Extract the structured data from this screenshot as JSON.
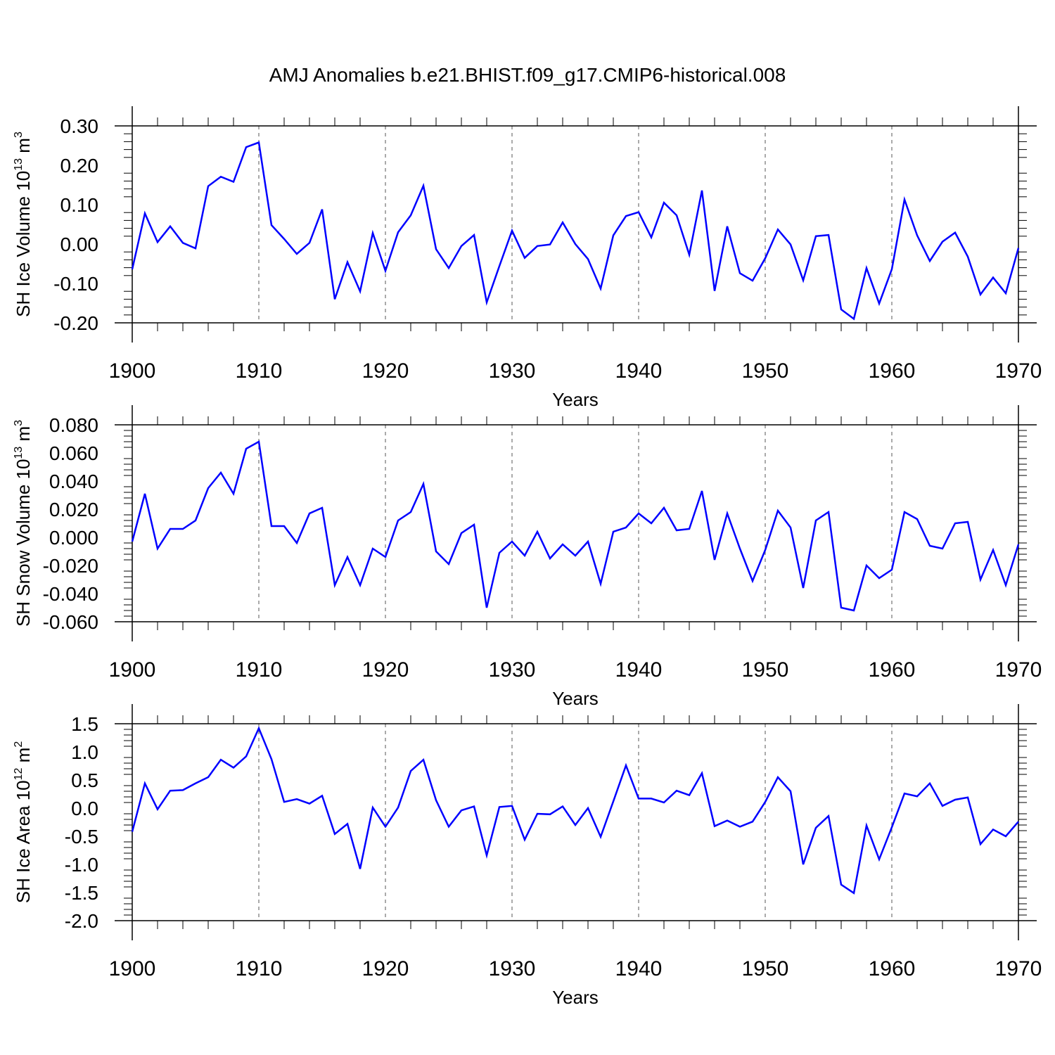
{
  "title": "AMJ Anomalies b.e21.BHIST.f09_g17.CMIP6-historical.008",
  "colors": {
    "line": "#0000ff",
    "axis": "#000000",
    "grid": "#555555"
  },
  "chart_data": [
    {
      "type": "line",
      "title": "AMJ Anomalies b.e21.BHIST.f09_g17.CMIP6-historical.008",
      "ylabel_main": "SH Ice Volume 10",
      "ylabel_exp": "13",
      "ylabel_unit": " m",
      "ylabel_unit_exp": "3",
      "xlabel": "Years",
      "xlim": [
        1900,
        1970
      ],
      "ylim": [
        -0.2,
        0.3
      ],
      "yticks": [
        -0.2,
        -0.1,
        0.0,
        0.1,
        0.2,
        0.3
      ],
      "ytick_labels": [
        "-0.20",
        "-0.10",
        "0.00",
        "0.10",
        "0.20",
        "0.30"
      ],
      "xticks": [
        1900,
        1910,
        1920,
        1930,
        1940,
        1950,
        1960,
        1970
      ],
      "xtick_labels": [
        "1900",
        "1910",
        "1920",
        "1930",
        "1940",
        "1950",
        "1960",
        "1970"
      ],
      "x_start": 1900,
      "values": [
        -0.064,
        0.078,
        0.005,
        0.045,
        0.003,
        -0.011,
        0.147,
        0.171,
        0.158,
        0.246,
        0.258,
        0.048,
        0.013,
        -0.025,
        0.003,
        0.088,
        -0.14,
        -0.046,
        -0.12,
        0.028,
        -0.068,
        0.03,
        0.073,
        0.148,
        -0.013,
        -0.061,
        -0.005,
        0.023,
        -0.148,
        -0.056,
        0.034,
        -0.035,
        -0.005,
        -0.001,
        0.055,
        0.0,
        -0.038,
        -0.113,
        0.022,
        0.071,
        0.081,
        0.017,
        0.105,
        0.073,
        -0.027,
        0.136,
        -0.119,
        0.045,
        -0.074,
        -0.093,
        -0.036,
        0.037,
        -0.001,
        -0.092,
        0.02,
        0.023,
        -0.166,
        -0.19,
        -0.061,
        -0.151,
        -0.064,
        0.113,
        0.022,
        -0.043,
        0.006,
        0.029,
        -0.032,
        -0.128,
        -0.085,
        -0.125,
        -0.01
      ]
    },
    {
      "type": "line",
      "ylabel_main": "SH Snow Volume 10",
      "ylabel_exp": "13",
      "ylabel_unit": " m",
      "ylabel_unit_exp": "3",
      "xlabel": "Years",
      "xlim": [
        1900,
        1970
      ],
      "ylim": [
        -0.06,
        0.08
      ],
      "yticks": [
        -0.06,
        -0.04,
        -0.02,
        0.0,
        0.02,
        0.04,
        0.06,
        0.08
      ],
      "ytick_labels": [
        "-0.060",
        "-0.040",
        "-0.020",
        "0.000",
        "0.020",
        "0.040",
        "0.060",
        "0.080"
      ],
      "xticks": [
        1900,
        1910,
        1920,
        1930,
        1940,
        1950,
        1960,
        1970
      ],
      "xtick_labels": [
        "1900",
        "1910",
        "1920",
        "1930",
        "1940",
        "1950",
        "1960",
        "1970"
      ],
      "x_start": 1900,
      "values": [
        -0.003,
        0.031,
        -0.008,
        0.006,
        0.006,
        0.012,
        0.035,
        0.046,
        0.031,
        0.063,
        0.068,
        0.008,
        0.008,
        -0.004,
        0.017,
        0.021,
        -0.034,
        -0.014,
        -0.034,
        -0.008,
        -0.014,
        0.012,
        0.018,
        0.038,
        -0.01,
        -0.019,
        0.003,
        0.009,
        -0.05,
        -0.011,
        -0.003,
        -0.013,
        0.004,
        -0.015,
        -0.005,
        -0.013,
        -0.003,
        -0.033,
        0.004,
        0.007,
        0.017,
        0.01,
        0.021,
        0.005,
        0.006,
        0.033,
        -0.016,
        0.017,
        -0.008,
        -0.031,
        -0.009,
        0.019,
        0.007,
        -0.036,
        0.012,
        0.018,
        -0.05,
        -0.052,
        -0.02,
        -0.029,
        -0.023,
        0.018,
        0.013,
        -0.006,
        -0.008,
        0.01,
        0.011,
        -0.03,
        -0.009,
        -0.034,
        -0.005
      ]
    },
    {
      "type": "line",
      "ylabel_main": "SH Ice Area 10",
      "ylabel_exp": "12",
      "ylabel_unit": " m",
      "ylabel_unit_exp": "2",
      "xlabel": "Years",
      "xlim": [
        1900,
        1970
      ],
      "ylim": [
        -2.0,
        1.5
      ],
      "yticks": [
        -2.0,
        -1.5,
        -1.0,
        -0.5,
        0.0,
        0.5,
        1.0,
        1.5
      ],
      "ytick_labels": [
        "-2.0",
        "-1.5",
        "-1.0",
        "-0.5",
        "0.0",
        "0.5",
        "1.0",
        "1.5"
      ],
      "xticks": [
        1900,
        1910,
        1920,
        1930,
        1940,
        1950,
        1960,
        1970
      ],
      "xtick_labels": [
        "1900",
        "1910",
        "1920",
        "1930",
        "1940",
        "1950",
        "1960",
        "1970"
      ],
      "x_start": 1900,
      "values": [
        -0.42,
        0.44,
        -0.02,
        0.31,
        0.32,
        0.44,
        0.55,
        0.86,
        0.72,
        0.92,
        1.42,
        0.87,
        0.11,
        0.16,
        0.08,
        0.22,
        -0.46,
        -0.28,
        -1.08,
        0.01,
        -0.33,
        0.01,
        0.66,
        0.86,
        0.14,
        -0.33,
        -0.04,
        0.03,
        -0.84,
        0.02,
        0.04,
        -0.56,
        -0.1,
        -0.11,
        0.03,
        -0.3,
        0.0,
        -0.51,
        0.12,
        0.76,
        0.17,
        0.17,
        0.1,
        0.31,
        0.23,
        0.62,
        -0.32,
        -0.22,
        -0.33,
        -0.24,
        0.11,
        0.55,
        0.3,
        -1.0,
        -0.35,
        -0.14,
        -1.36,
        -1.51,
        -0.31,
        -0.91,
        -0.34,
        0.26,
        0.21,
        0.44,
        0.04,
        0.15,
        0.19,
        -0.64,
        -0.38,
        -0.5,
        -0.24
      ]
    }
  ]
}
